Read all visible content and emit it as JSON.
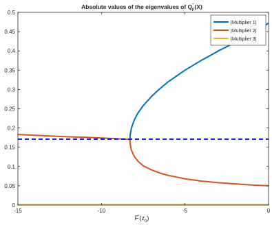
{
  "chart_data": {
    "type": "line",
    "title_main": "Absolute values of the eigenvalues of Q",
    "title_sub": "F",
    "title_sup": "'",
    "title_end": "(X)",
    "xlabel_main": "F",
    "xlabel_sup": "'",
    "xlabel_paren_open": "(z",
    "xlabel_sub": "0",
    "xlabel_paren_close": ")",
    "ylabel": "",
    "xlim": [
      -15,
      0
    ],
    "ylim": [
      0,
      0.5
    ],
    "xticks": [
      -15,
      -10,
      -5,
      0
    ],
    "xtick_labels": [
      "-15",
      "-10",
      "-5",
      "0"
    ],
    "yticks": [
      0,
      0.05,
      0.1,
      0.15,
      0.2,
      0.25,
      0.3,
      0.35,
      0.4,
      0.45,
      0.5
    ],
    "ytick_labels": [
      "0",
      "0.05",
      "0.1",
      "0.15",
      "0.2",
      "0.25",
      "0.3",
      "0.35",
      "0.4",
      "0.45",
      "0.5"
    ],
    "grid": false,
    "legend_position": "top-right",
    "series": [
      {
        "name": "|Multiplier 1|",
        "color": "#0072BD",
        "style": "solid",
        "x": [
          -8.3,
          -8.28,
          -8.25,
          -8.2,
          -8.1,
          -8.0,
          -7.8,
          -7.5,
          -7.0,
          -6.5,
          -6.0,
          -5.0,
          -4.0,
          -3.0,
          -2.0,
          -1.0,
          0
        ],
        "y": [
          0.17,
          0.182,
          0.19,
          0.2,
          0.213,
          0.224,
          0.24,
          0.258,
          0.282,
          0.302,
          0.32,
          0.35,
          0.376,
          0.4,
          0.422,
          0.444,
          0.472
        ]
      },
      {
        "name": "|Multiplier 2|",
        "color": "#D95319",
        "style": "solid",
        "x": [
          -15,
          -14,
          -13,
          -12,
          -11,
          -10,
          -9,
          -8.5,
          -8.3,
          -8.28,
          -8.25,
          -8.2,
          -8.1,
          -8.0,
          -7.8,
          -7.5,
          -7.0,
          -6.5,
          -6.0,
          -5.0,
          -4.0,
          -3.0,
          -2.0,
          -1.0,
          0
        ],
        "y": [
          0.183,
          0.181,
          0.179,
          0.177,
          0.176,
          0.174,
          0.172,
          0.171,
          0.17,
          0.158,
          0.15,
          0.142,
          0.132,
          0.124,
          0.113,
          0.102,
          0.091,
          0.083,
          0.077,
          0.068,
          0.062,
          0.058,
          0.055,
          0.052,
          0.05
        ]
      },
      {
        "name": "|Multiplier 3|",
        "color": "#EDB120",
        "style": "solid",
        "x": [
          -15,
          0
        ],
        "y": [
          0.001,
          0.001
        ]
      },
      {
        "name": "",
        "color": "#0000FF",
        "style": "dashed",
        "x": [
          -15,
          0
        ],
        "y": [
          0.171,
          0.171
        ]
      }
    ]
  }
}
